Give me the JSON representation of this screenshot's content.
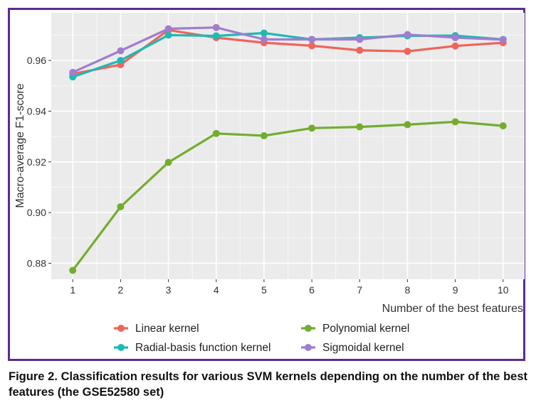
{
  "caption": "Figure 2. Classification results for various SVM kernels depending on the number of the best features (the GSE52580 set)",
  "chart_data": {
    "type": "line",
    "title": "",
    "xlabel": "Number of the best features",
    "ylabel": "Macro-average F1-score",
    "x": [
      1,
      2,
      3,
      4,
      5,
      6,
      7,
      8,
      9,
      10
    ],
    "x_ticks": [
      "1",
      "2",
      "3",
      "4",
      "5",
      "6",
      "7",
      "8",
      "9",
      "10"
    ],
    "xlim": [
      0.55,
      10.45
    ],
    "ylim": [
      0.8737,
      0.9788
    ],
    "y_ticks": [
      0.88,
      0.9,
      0.92,
      0.94,
      0.96
    ],
    "y_tick_labels": [
      "0.88",
      "0.90",
      "0.92",
      "0.94",
      "0.96"
    ],
    "grid": true,
    "legend_position": "bottom",
    "series": [
      {
        "name": "Linear kernel",
        "color": "#f0645a",
        "values": [
          0.9547,
          0.9583,
          0.972,
          0.969,
          0.967,
          0.9658,
          0.964,
          0.9636,
          0.9657,
          0.967
        ]
      },
      {
        "name": "Radial-basis function kernel",
        "color": "#1fb9b4",
        "values": [
          0.9535,
          0.96,
          0.97,
          0.9697,
          0.9708,
          0.9683,
          0.969,
          0.9697,
          0.9698,
          0.9683
        ]
      },
      {
        "name": "Polynomial kernel",
        "color": "#73ad2f",
        "values": [
          0.8772,
          0.9023,
          0.9198,
          0.9312,
          0.9303,
          0.9333,
          0.9338,
          0.9347,
          0.9358,
          0.9342
        ]
      },
      {
        "name": "Sigmoidal kernel",
        "color": "#a07dcf",
        "values": [
          0.9553,
          0.9638,
          0.9725,
          0.973,
          0.9683,
          0.9683,
          0.9683,
          0.9702,
          0.969,
          0.9682
        ]
      }
    ]
  }
}
